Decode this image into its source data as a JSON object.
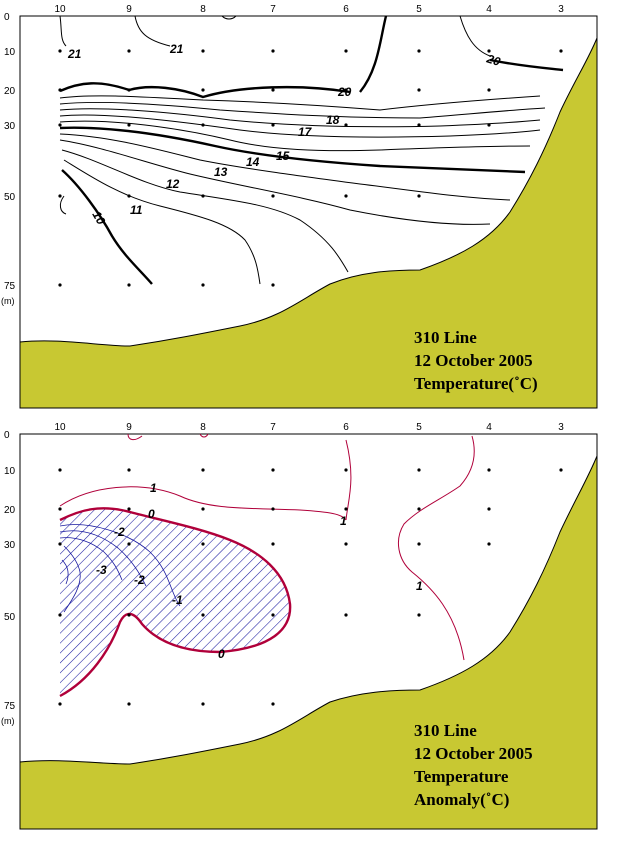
{
  "stations": [
    "10",
    "9",
    "8",
    "7",
    "6",
    "5",
    "4",
    "3"
  ],
  "depth_ticks": [
    "0",
    "10",
    "20",
    "30",
    "50",
    "75"
  ],
  "depth_unit": "(m)",
  "colors": {
    "seabed": "#c8c832",
    "temperature_contour": "#000000",
    "anomaly_contour": "#b0003a",
    "negative_hatch": "#1a1aa0"
  },
  "panel_top": {
    "title_line1": "310 Line",
    "title_line2": "12 October 2005",
    "title_line3": "Temperature(˚C)",
    "contour_labels": [
      "21",
      "21",
      "20",
      "20",
      "18",
      "17",
      "15",
      "14",
      "13",
      "12",
      "11",
      "10"
    ]
  },
  "panel_bottom": {
    "title_line1": "310 Line",
    "title_line2": "12 October  2005",
    "title_line3": "Temperature",
    "title_line4": "Anomaly(˚C)",
    "contour_labels": [
      "1",
      "1",
      "1",
      "0",
      "0",
      "-2",
      "-2",
      "-3",
      "-1"
    ]
  }
}
